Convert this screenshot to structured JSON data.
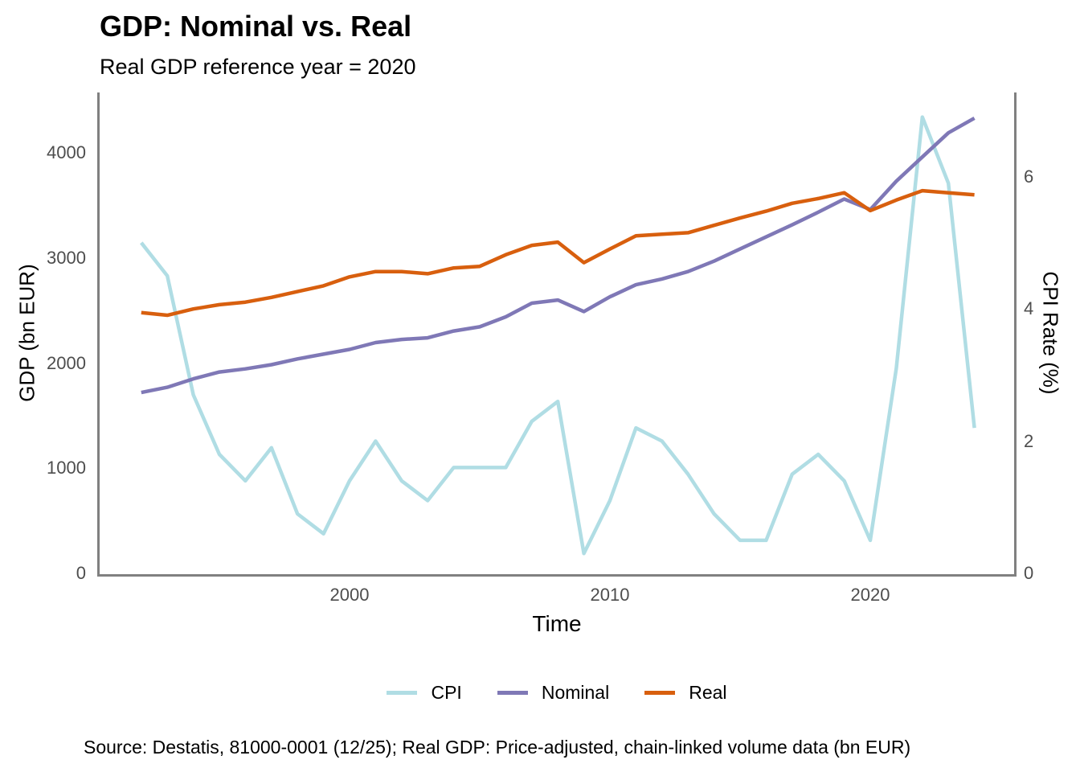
{
  "header": {
    "title": "GDP: Nominal vs. Real",
    "subtitle": "Real GDP reference year = 2020"
  },
  "caption": "Source: Destatis, 81000-0001 (12/25); Real GDP: Price-adjusted, chain-linked volume data (bn EUR)",
  "axes": {
    "left": {
      "label": "GDP (bn EUR)",
      "ticks": [
        0,
        1000,
        2000,
        3000,
        4000
      ]
    },
    "right": {
      "label": "CPI Rate (%)",
      "ticks": [
        0,
        2,
        4,
        6
      ]
    },
    "bottom": {
      "label": "Time",
      "ticks": [
        2000,
        2010,
        2020
      ]
    }
  },
  "style_colors": {
    "axis_line": "#808080",
    "tick_text": "#4d4d4d"
  },
  "chart_data": {
    "type": "line",
    "title": "GDP: Nominal vs. Real",
    "subtitle": "Real GDP reference year = 2020",
    "xlabel": "Time",
    "ylabel_left": "GDP (bn EUR)",
    "ylabel_right": "CPI Rate (%)",
    "xlim": [
      1990.4,
      2025.5
    ],
    "ylim_left": [
      0,
      4573
    ],
    "ylim_right": [
      0,
      7.27
    ],
    "grid": false,
    "legend_position": "bottom",
    "x": [
      1992,
      1993,
      1994,
      1995,
      1996,
      1997,
      1998,
      1999,
      2000,
      2001,
      2002,
      2003,
      2004,
      2005,
      2006,
      2007,
      2008,
      2009,
      2010,
      2011,
      2012,
      2013,
      2014,
      2015,
      2016,
      2017,
      2018,
      2019,
      2020,
      2021,
      2022,
      2023,
      2024
    ],
    "series": [
      {
        "name": "CPI",
        "axis": "right",
        "color": "#b0dde4",
        "values": [
          5.0,
          4.5,
          2.7,
          1.8,
          1.4,
          1.9,
          0.9,
          0.6,
          1.4,
          2.0,
          1.4,
          1.1,
          1.6,
          1.6,
          1.6,
          2.3,
          2.6,
          0.3,
          1.1,
          2.2,
          2.0,
          1.5,
          0.9,
          0.5,
          0.5,
          1.5,
          1.8,
          1.4,
          0.5,
          3.1,
          6.9,
          5.9,
          2.2
        ]
      },
      {
        "name": "Nominal",
        "axis": "left",
        "color": "#7f78b6",
        "values": [
          1720,
          1770,
          1850,
          1915,
          1945,
          1985,
          2040,
          2085,
          2130,
          2195,
          2225,
          2240,
          2305,
          2345,
          2440,
          2570,
          2600,
          2490,
          2630,
          2745,
          2800,
          2870,
          2970,
          3085,
          3200,
          3315,
          3435,
          3560,
          3460,
          3730,
          3960,
          4190,
          4330
        ]
      },
      {
        "name": "Real",
        "axis": "left",
        "color": "#d85f0e",
        "values": [
          2480,
          2455,
          2515,
          2555,
          2580,
          2625,
          2680,
          2735,
          2820,
          2870,
          2870,
          2850,
          2905,
          2920,
          3030,
          3120,
          3150,
          2955,
          3085,
          3210,
          3225,
          3240,
          3310,
          3380,
          3445,
          3520,
          3565,
          3620,
          3450,
          3550,
          3640,
          3620,
          3600
        ]
      }
    ]
  }
}
